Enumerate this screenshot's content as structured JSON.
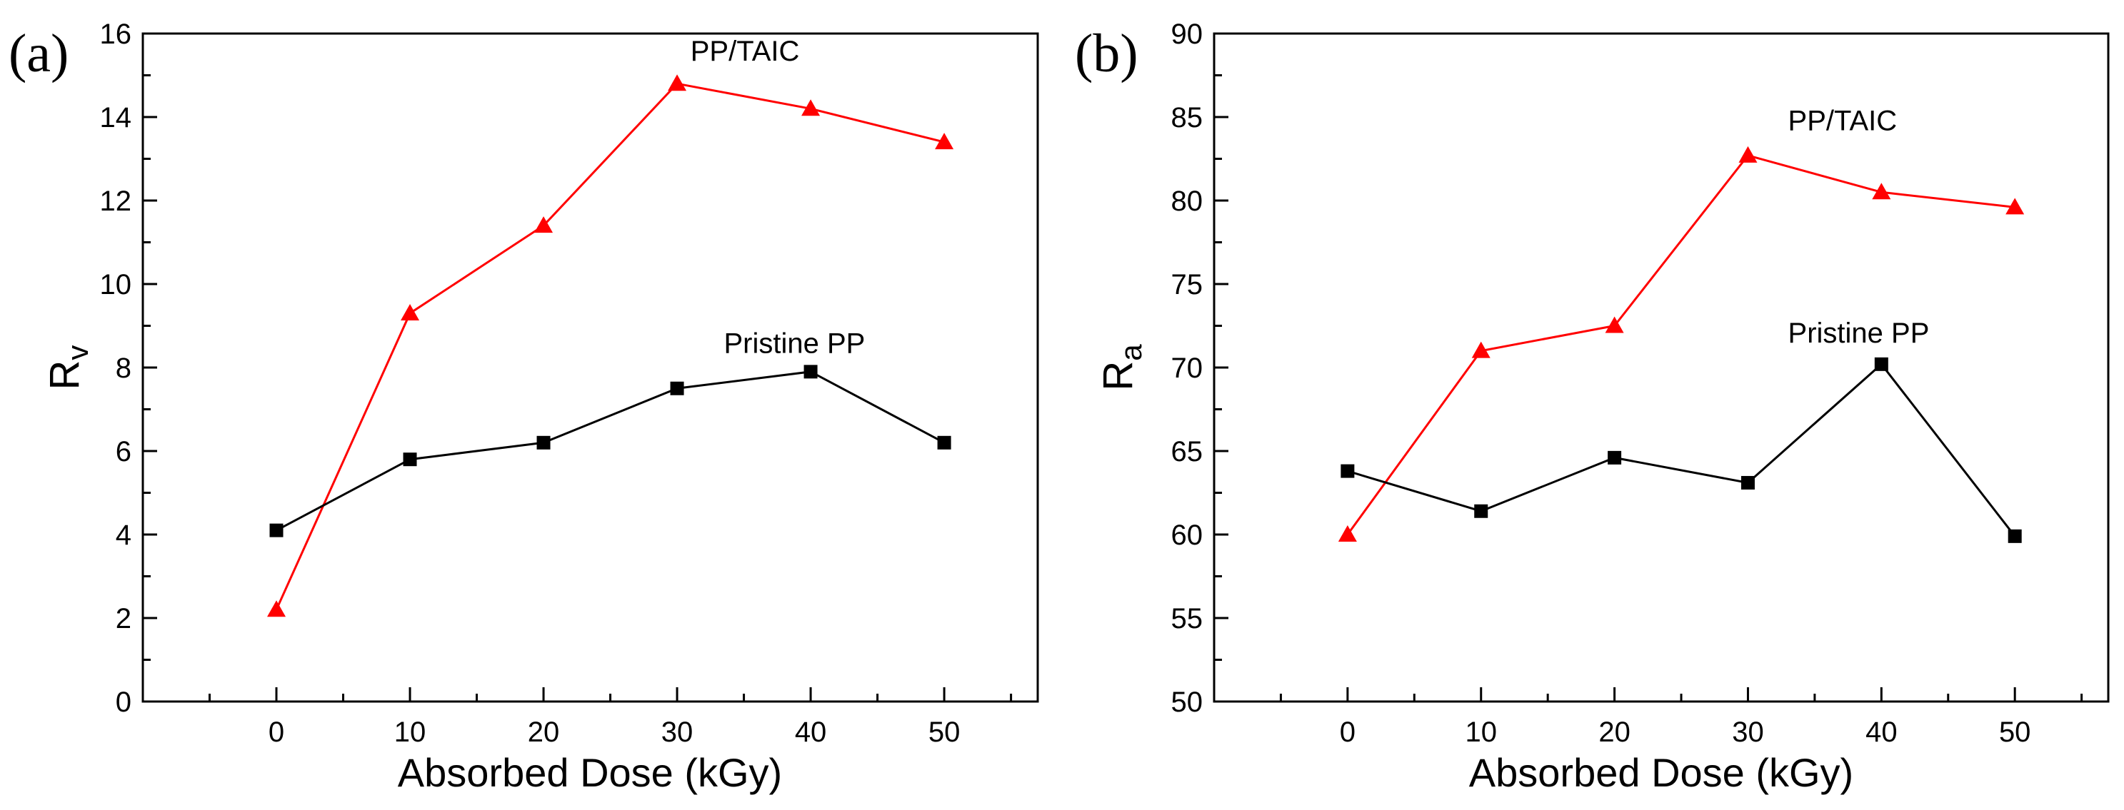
{
  "chart_data": [
    {
      "type": "line",
      "panel_label": "(a)",
      "title": "",
      "xlabel": "Absorbed Dose (kGy)",
      "ylabel_main": "R",
      "ylabel_sub": "v",
      "x": [
        0,
        10,
        20,
        30,
        40,
        50
      ],
      "xticks": [
        0,
        10,
        20,
        30,
        40,
        50
      ],
      "xlim": [
        -10,
        57
      ],
      "yticks": [
        0,
        2,
        4,
        6,
        8,
        10,
        12,
        14,
        16
      ],
      "ylim": [
        0,
        16
      ],
      "series": [
        {
          "name": "PP/TAIC",
          "color": "#ff0000",
          "marker": "triangle",
          "values": [
            2.2,
            9.3,
            11.4,
            14.8,
            14.2,
            13.4
          ],
          "label_anchor": [
            31,
            15.35
          ]
        },
        {
          "name": "Pristine PP",
          "color": "#000000",
          "marker": "square",
          "values": [
            4.1,
            5.8,
            6.2,
            7.5,
            7.9,
            6.2
          ],
          "label_anchor": [
            33.5,
            8.35
          ]
        }
      ]
    },
    {
      "type": "line",
      "panel_label": "(b)",
      "title": "",
      "xlabel": "Absorbed Dose (kGy)",
      "ylabel_main": "R",
      "ylabel_sub": "a",
      "x": [
        0,
        10,
        20,
        30,
        40,
        50
      ],
      "xticks": [
        0,
        10,
        20,
        30,
        40,
        50
      ],
      "xlim": [
        -10,
        57
      ],
      "yticks": [
        50,
        55,
        60,
        65,
        70,
        75,
        80,
        85,
        90
      ],
      "ylim": [
        50,
        90
      ],
      "series": [
        {
          "name": "PP/TAIC",
          "color": "#ff0000",
          "marker": "triangle",
          "values": [
            60.0,
            71.0,
            72.5,
            82.7,
            80.5,
            79.6
          ],
          "label_anchor": [
            33,
            84.2
          ]
        },
        {
          "name": "Pristine PP",
          "color": "#000000",
          "marker": "square",
          "values": [
            63.8,
            61.4,
            64.6,
            63.1,
            70.2,
            59.9
          ],
          "label_anchor": [
            33,
            71.5
          ]
        }
      ]
    }
  ]
}
